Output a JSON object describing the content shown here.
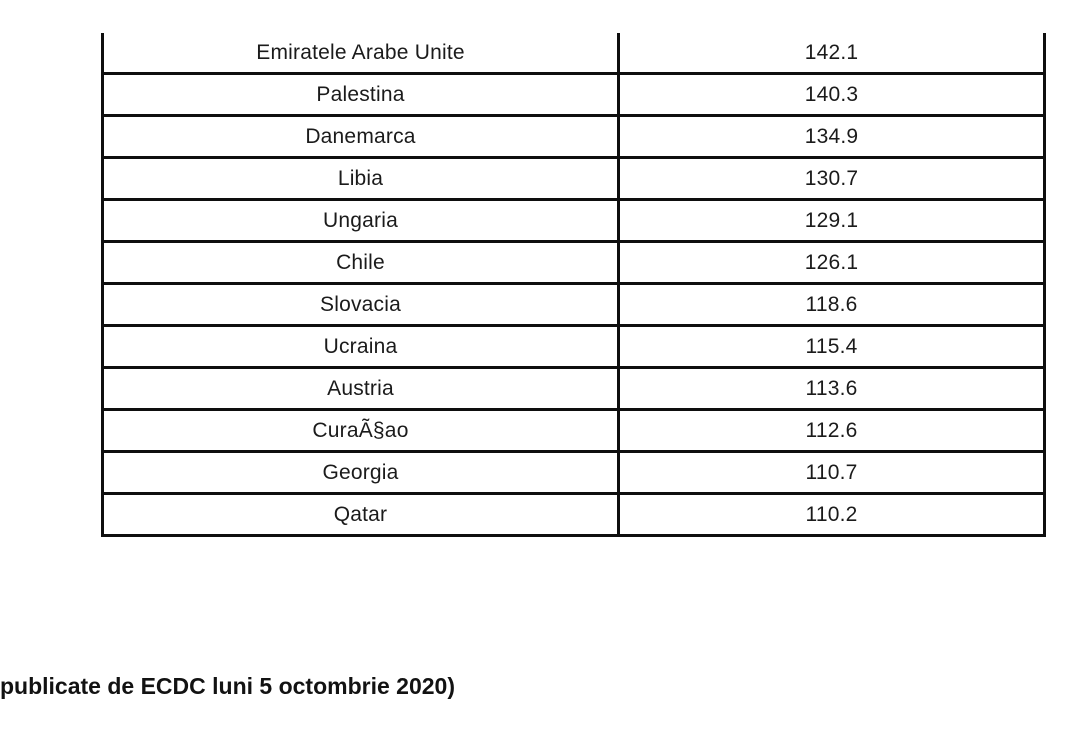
{
  "table": {
    "rows": [
      {
        "country": "Emiratele Arabe Unite",
        "value": "142.1"
      },
      {
        "country": "Palestina",
        "value": "140.3"
      },
      {
        "country": "Danemarca",
        "value": "134.9"
      },
      {
        "country": "Libia",
        "value": "130.7"
      },
      {
        "country": "Ungaria",
        "value": "129.1"
      },
      {
        "country": "Chile",
        "value": "126.1"
      },
      {
        "country": "Slovacia",
        "value": "118.6"
      },
      {
        "country": "Ucraina",
        "value": "115.4"
      },
      {
        "country": "Austria",
        "value": "113.6"
      },
      {
        "country": "CuraÃ§ao",
        "value": "112.6"
      },
      {
        "country": "Georgia",
        "value": "110.7"
      },
      {
        "country": "Qatar",
        "value": "110.2"
      }
    ]
  },
  "caption": {
    "text": "publicate de ECDC luni 5 octombrie 2020)"
  },
  "colors": {
    "background": "#ffffff",
    "text": "#1b1b1b",
    "border": "#0e0e0e"
  }
}
